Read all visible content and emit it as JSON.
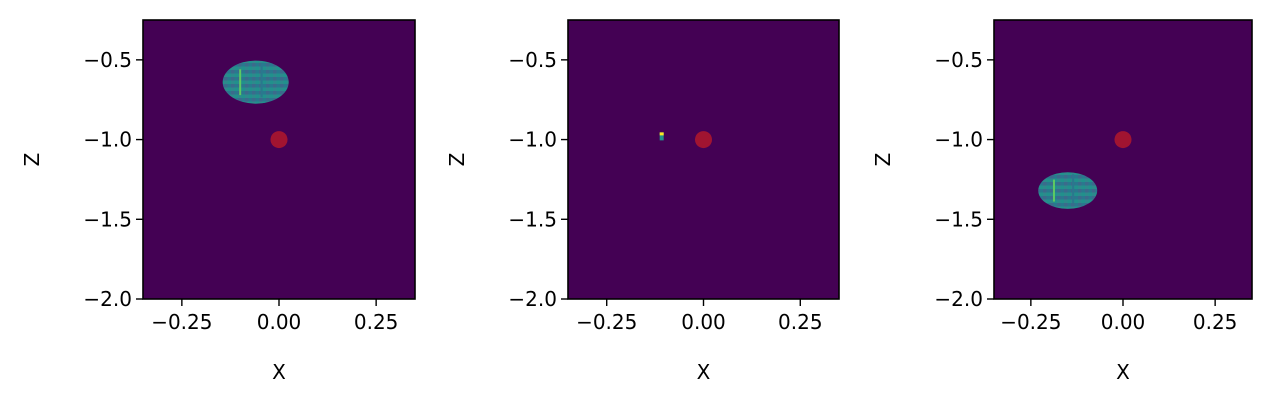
{
  "chart_data": [
    {
      "type": "heatmap",
      "xlabel": "X",
      "ylabel": "Z",
      "xlim": [
        -0.35,
        0.35
      ],
      "ylim": [
        -2.0,
        -0.25
      ],
      "x_ticks": [
        "−0.25",
        "0.00",
        "0.25"
      ],
      "y_ticks": [
        "−0.5",
        "−1.0",
        "−1.5",
        "−2.0"
      ],
      "x_tick_values": [
        -0.25,
        0.0,
        0.25
      ],
      "y_tick_values": [
        -0.5,
        -1.0,
        -1.5,
        -2.0
      ],
      "grid": false,
      "background_color": "#440154",
      "blob": {
        "center_x": -0.06,
        "center_z": -0.64,
        "width_x": 0.17,
        "height_z": 0.27
      },
      "marker": {
        "x": 0.0,
        "z": -1.0,
        "color": "#b1172b"
      }
    },
    {
      "type": "heatmap",
      "xlabel": "X",
      "ylabel": "Z",
      "xlim": [
        -0.35,
        0.35
      ],
      "ylim": [
        -2.0,
        -0.25
      ],
      "x_ticks": [
        "−0.25",
        "0.00",
        "0.25"
      ],
      "y_ticks": [
        "−0.5",
        "−1.0",
        "−1.5",
        "−2.0"
      ],
      "x_tick_values": [
        -0.25,
        0.0,
        0.25
      ],
      "y_tick_values": [
        -0.5,
        -1.0,
        -1.5,
        -2.0
      ],
      "grid": false,
      "background_color": "#440154",
      "blob": {
        "center_x": -0.108,
        "center_z": -0.98,
        "width_x": 0.012,
        "height_z": 0.04
      },
      "marker": {
        "x": 0.0,
        "z": -1.0,
        "color": "#b1172b"
      }
    },
    {
      "type": "heatmap",
      "xlabel": "X",
      "ylabel": "Z",
      "xlim": [
        -0.35,
        0.35
      ],
      "ylim": [
        -2.0,
        -0.25
      ],
      "x_ticks": [
        "−0.25",
        "0.00",
        "0.25"
      ],
      "y_ticks": [
        "−0.5",
        "−1.0",
        "−1.5",
        "−2.0"
      ],
      "x_tick_values": [
        -0.25,
        0.0,
        0.25
      ],
      "y_tick_values": [
        -0.5,
        -1.0,
        -1.5,
        -2.0
      ],
      "grid": false,
      "background_color": "#440154",
      "blob": {
        "center_x": -0.15,
        "center_z": -1.32,
        "width_x": 0.16,
        "height_z": 0.23
      },
      "marker": {
        "x": 0.0,
        "z": -1.0,
        "color": "#b1172b"
      }
    }
  ]
}
